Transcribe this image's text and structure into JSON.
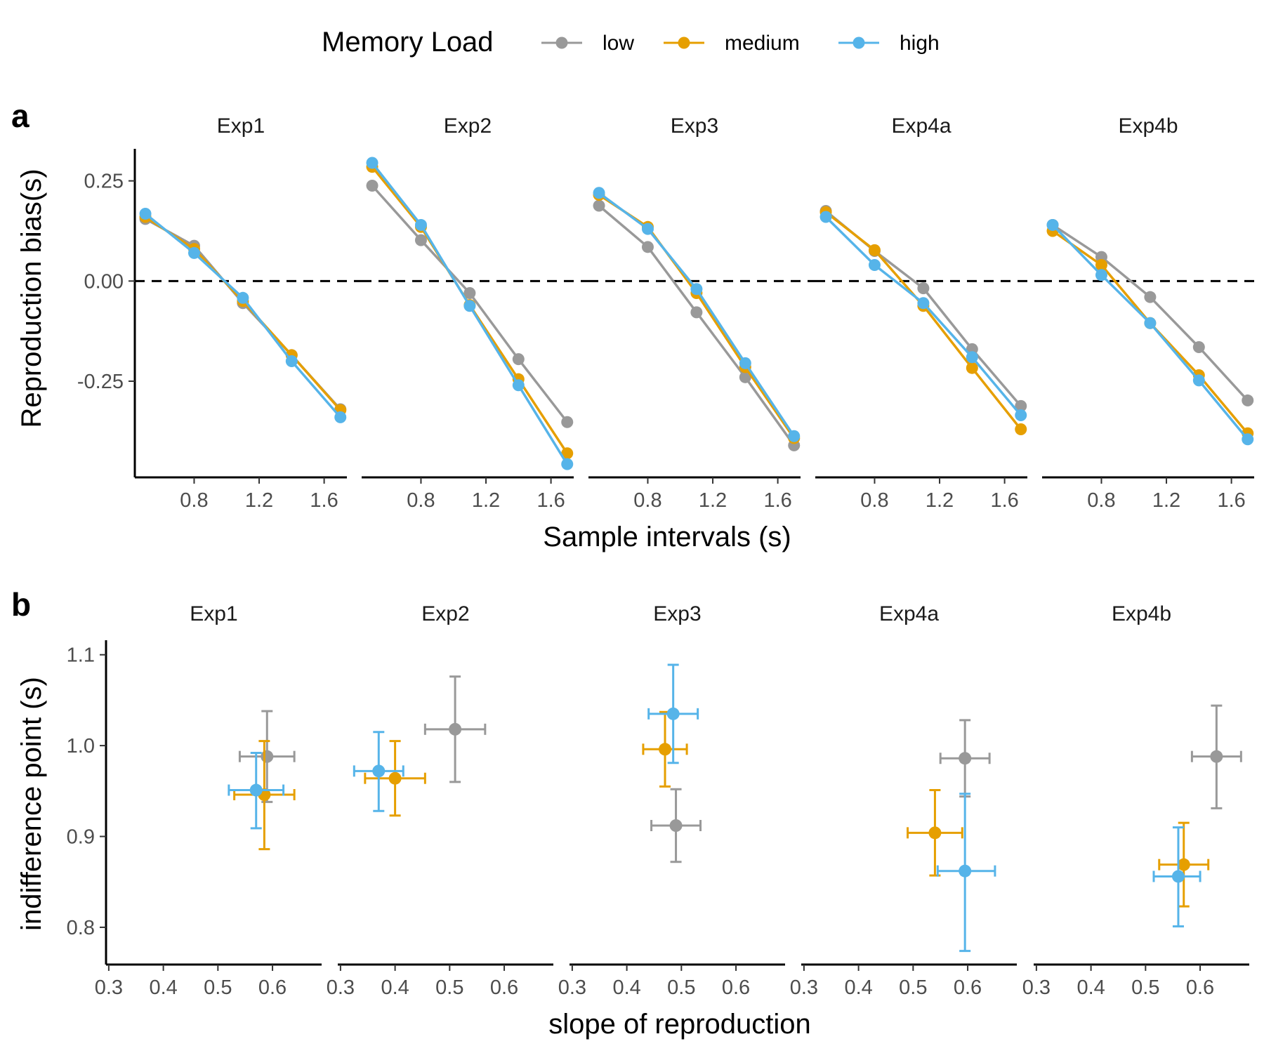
{
  "legend": {
    "title": "Memory Load",
    "items": [
      {
        "label": "low",
        "color": "#999999"
      },
      {
        "label": "medium",
        "color": "#E69F00"
      },
      {
        "label": "high",
        "color": "#56B4E9"
      }
    ]
  },
  "panel_a": {
    "letter": "a"
  },
  "panel_b": {
    "letter": "b"
  },
  "chart_data": [
    {
      "type": "line",
      "panel": "a",
      "facets": [
        "Exp1",
        "Exp2",
        "Exp3",
        "Exp4a",
        "Exp4b"
      ],
      "xlabel": "Sample intervals (s)",
      "ylabel": "Reproduction bias(s)",
      "x": [
        0.5,
        0.8,
        1.1,
        1.4,
        1.7
      ],
      "xticks": [
        0.8,
        1.2,
        1.6
      ],
      "xtick_labels": [
        "0.8",
        "1.2",
        "1.6"
      ],
      "xlim": [
        0.435,
        1.74
      ],
      "yticks": [
        -0.25,
        0.0,
        0.25
      ],
      "ytick_labels": [
        "-0.25",
        "0.00",
        "0.25"
      ],
      "ylim": [
        -0.49,
        0.33
      ],
      "reference_line": {
        "y": 0,
        "style": "dashed"
      },
      "series": [
        {
          "name": "low",
          "color": "#999999",
          "values": [
            [
              0.155,
              0.088,
              -0.055,
              -0.185,
              -0.32
            ],
            [
              0.238,
              0.102,
              -0.03,
              -0.195,
              -0.352
            ],
            [
              0.188,
              0.085,
              -0.078,
              -0.24,
              -0.41
            ],
            [
              0.175,
              0.075,
              -0.018,
              -0.17,
              -0.312
            ],
            [
              0.14,
              0.06,
              -0.04,
              -0.165,
              -0.298
            ]
          ]
        },
        {
          "name": "medium",
          "color": "#E69F00",
          "values": [
            [
              0.16,
              0.08,
              -0.05,
              -0.185,
              -0.322
            ],
            [
              0.285,
              0.135,
              -0.06,
              -0.245,
              -0.43
            ],
            [
              0.215,
              0.135,
              -0.03,
              -0.215,
              -0.392
            ],
            [
              0.172,
              0.077,
              -0.062,
              -0.217,
              -0.37
            ],
            [
              0.125,
              0.04,
              -0.105,
              -0.235,
              -0.38
            ]
          ]
        },
        {
          "name": "high",
          "color": "#56B4E9",
          "values": [
            [
              0.168,
              0.07,
              -0.042,
              -0.2,
              -0.34
            ],
            [
              0.295,
              0.14,
              -0.062,
              -0.26,
              -0.457
            ],
            [
              0.22,
              0.13,
              -0.02,
              -0.205,
              -0.387
            ],
            [
              0.16,
              0.04,
              -0.055,
              -0.19,
              -0.335
            ],
            [
              0.14,
              0.015,
              -0.105,
              -0.248,
              -0.395
            ]
          ]
        }
      ]
    },
    {
      "type": "scatter",
      "panel": "b",
      "facets": [
        "Exp1",
        "Exp2",
        "Exp3",
        "Exp4a",
        "Exp4b"
      ],
      "xlabel": "slope of reproduction",
      "ylabel": "indifference point (s)",
      "xticks": [
        0.3,
        0.4,
        0.5,
        0.6
      ],
      "xtick_labels": [
        "0.3",
        "0.4",
        "0.5",
        "0.6"
      ],
      "xlim": [
        0.295,
        0.69
      ],
      "yticks": [
        0.8,
        0.9,
        1.0,
        1.1
      ],
      "ytick_labels": [
        "0.8",
        "0.9",
        "1.0",
        "1.1"
      ],
      "ylim": [
        0.759,
        1.116
      ],
      "error_bars": "both",
      "series": [
        {
          "name": "low",
          "color": "#999999",
          "points": [
            {
              "x": 0.59,
              "y": 0.988,
              "xmin": 0.54,
              "xmax": 0.64,
              "ymin": 0.938,
              "ymax": 1.038
            },
            {
              "x": 0.51,
              "y": 1.018,
              "xmin": 0.455,
              "xmax": 0.565,
              "ymin": 0.96,
              "ymax": 1.076
            },
            {
              "x": 0.49,
              "y": 0.912,
              "xmin": 0.445,
              "xmax": 0.535,
              "ymin": 0.872,
              "ymax": 0.952
            },
            {
              "x": 0.595,
              "y": 0.986,
              "xmin": 0.55,
              "xmax": 0.64,
              "ymin": 0.944,
              "ymax": 1.028
            },
            {
              "x": 0.63,
              "y": 0.988,
              "xmin": 0.585,
              "xmax": 0.675,
              "ymin": 0.931,
              "ymax": 1.044
            }
          ]
        },
        {
          "name": "medium",
          "color": "#E69F00",
          "points": [
            {
              "x": 0.585,
              "y": 0.946,
              "xmin": 0.53,
              "xmax": 0.64,
              "ymin": 0.886,
              "ymax": 1.005
            },
            {
              "x": 0.4,
              "y": 0.964,
              "xmin": 0.345,
              "xmax": 0.455,
              "ymin": 0.923,
              "ymax": 1.005
            },
            {
              "x": 0.47,
              "y": 0.996,
              "xmin": 0.43,
              "xmax": 0.51,
              "ymin": 0.955,
              "ymax": 1.037
            },
            {
              "x": 0.54,
              "y": 0.904,
              "xmin": 0.49,
              "xmax": 0.59,
              "ymin": 0.857,
              "ymax": 0.951
            },
            {
              "x": 0.57,
              "y": 0.869,
              "xmin": 0.525,
              "xmax": 0.615,
              "ymin": 0.823,
              "ymax": 0.915
            }
          ]
        },
        {
          "name": "high",
          "color": "#56B4E9",
          "points": [
            {
              "x": 0.57,
              "y": 0.951,
              "xmin": 0.52,
              "xmax": 0.62,
              "ymin": 0.909,
              "ymax": 0.992
            },
            {
              "x": 0.37,
              "y": 0.972,
              "xmin": 0.325,
              "xmax": 0.415,
              "ymin": 0.928,
              "ymax": 1.015
            },
            {
              "x": 0.485,
              "y": 1.035,
              "xmin": 0.44,
              "xmax": 0.53,
              "ymin": 0.981,
              "ymax": 1.089
            },
            {
              "x": 0.595,
              "y": 0.862,
              "xmin": 0.545,
              "xmax": 0.65,
              "ymin": 0.774,
              "ymax": 0.947
            },
            {
              "x": 0.56,
              "y": 0.856,
              "xmin": 0.515,
              "xmax": 0.6,
              "ymin": 0.801,
              "ymax": 0.91
            }
          ]
        }
      ]
    }
  ]
}
